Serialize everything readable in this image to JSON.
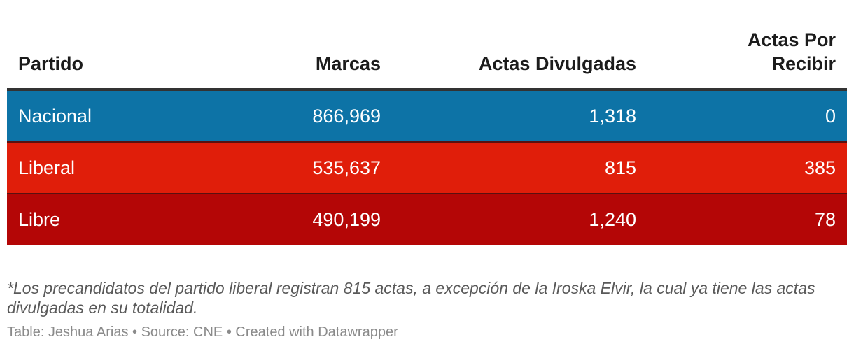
{
  "chart_data": {
    "type": "table",
    "columns": [
      "Partido",
      "Marcas",
      "Actas Divulgadas",
      "Actas Por Recibir"
    ],
    "rows": [
      {
        "partido": "Nacional",
        "marcas": "866,969",
        "actas_divulgadas": "1,318",
        "actas_por_recibir": "0",
        "color": "#0d73a6"
      },
      {
        "partido": "Liberal",
        "marcas": "535,637",
        "actas_divulgadas": "815",
        "actas_por_recibir": "385",
        "color": "#e01e0a"
      },
      {
        "partido": "Libre",
        "marcas": "490,199",
        "actas_divulgadas": "1,240",
        "actas_por_recibir": "78",
        "color": "#b40606"
      }
    ]
  },
  "note": "*Los precandidatos del partido liberal registran 815 actas, a excepción de la Iroska Elvir, la cual ya tiene las actas divulgadas en su totalidad.",
  "footer": {
    "table_credit": "Table: Jeshua Arias",
    "source": "Source: CNE",
    "created_with": "Created with Datawrapper",
    "separator": " • "
  }
}
